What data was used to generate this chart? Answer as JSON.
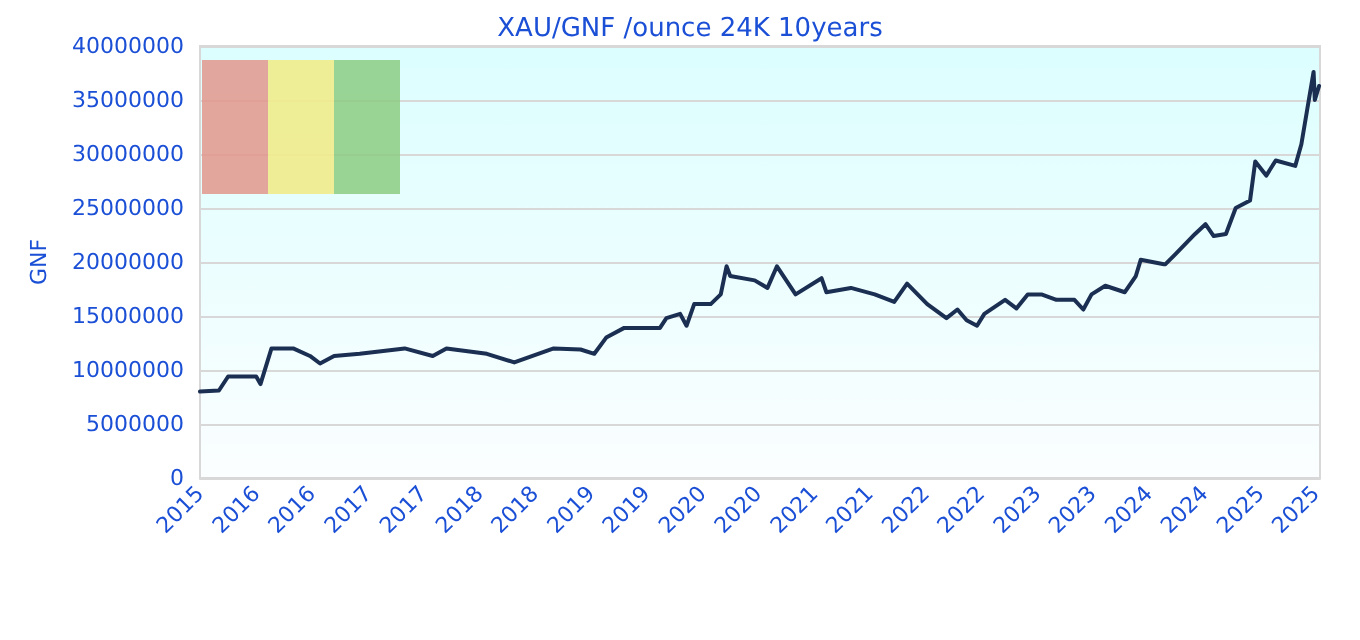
{
  "chart_data": {
    "type": "line",
    "title": "XAU/GNF /ounce 24K 10years",
    "ylabel": "GNF",
    "x": [
      "2015-07-01",
      "2015-09-01",
      "2015-10-01",
      "2016-01-01",
      "2016-01-15",
      "2016-02-20",
      "2016-05-01",
      "2016-06-25",
      "2016-07-28",
      "2016-09-12",
      "2016-12-05",
      "2017-05-01",
      "2017-08-01",
      "2017-09-15",
      "2018-01-25",
      "2018-04-25",
      "2018-09-01",
      "2018-11-28",
      "2019-01-12",
      "2019-02-20",
      "2019-04-20",
      "2019-07-01",
      "2019-08-15",
      "2019-09-05",
      "2019-10-20",
      "2019-11-10",
      "2019-12-05",
      "2020-01-28",
      "2020-03-01",
      "2020-03-20",
      "2020-04-01",
      "2020-06-20",
      "2020-08-01",
      "2020-09-01",
      "2020-11-01",
      "2021-01-25",
      "2021-02-10",
      "2021-05-01",
      "2021-07-18",
      "2021-09-20",
      "2021-11-01",
      "2022-01-06",
      "2022-03-10",
      "2022-04-15",
      "2022-05-15",
      "2022-06-18",
      "2022-07-12",
      "2022-09-18",
      "2022-10-25",
      "2022-12-01",
      "2023-01-15",
      "2023-03-05",
      "2023-05-03",
      "2023-06-01",
      "2023-06-28",
      "2023-08-12",
      "2023-10-15",
      "2023-11-20",
      "2023-12-06",
      "2024-02-20",
      "2024-02-25",
      "2024-03-28",
      "2024-06-01",
      "2024-07-05",
      "2024-08-01",
      "2024-09-10",
      "2024-10-12",
      "2024-11-28",
      "2024-12-15",
      "2025-01-20",
      "2025-02-20",
      "2025-04-25",
      "2025-05-15",
      "2025-06-03",
      "2025-06-24",
      "2025-06-28",
      "2025-07-12"
    ],
    "series": [
      {
        "color": "#1b2f52",
        "values": [
          8000000,
          8100000,
          9400000,
          9400000,
          8700000,
          12000000,
          12000000,
          11300000,
          10600000,
          11300000,
          11500000,
          12000000,
          11300000,
          12000000,
          11500000,
          10700000,
          12000000,
          11900000,
          11500000,
          13000000,
          13900000,
          13900000,
          13900000,
          14800000,
          15200000,
          14100000,
          16100000,
          16100000,
          17000000,
          19600000,
          18700000,
          18300000,
          17600000,
          19600000,
          17000000,
          18500000,
          17200000,
          17600000,
          17000000,
          16300000,
          18000000,
          16100000,
          14800000,
          15600000,
          14600000,
          14100000,
          15200000,
          16500000,
          15700000,
          17000000,
          17000000,
          16500000,
          16500000,
          15600000,
          17000000,
          17800000,
          17200000,
          18700000,
          20200000,
          19800000,
          19800000,
          20700000,
          22600000,
          23500000,
          22400000,
          22600000,
          25000000,
          25700000,
          29300000,
          28000000,
          29400000,
          28900000,
          30900000,
          34100000,
          37600000,
          35000000,
          36300000
        ]
      }
    ],
    "xlim": [
      "2015-07-01",
      "2025-07-15"
    ],
    "xticks": [
      {
        "value": "2015-07-01",
        "label": "2015"
      },
      {
        "value": "2016-01-01",
        "label": "2016"
      },
      {
        "value": "2016-07-01",
        "label": "2016"
      },
      {
        "value": "2017-01-01",
        "label": "2017"
      },
      {
        "value": "2017-07-01",
        "label": "2017"
      },
      {
        "value": "2018-01-01",
        "label": "2018"
      },
      {
        "value": "2018-07-01",
        "label": "2018"
      },
      {
        "value": "2019-01-01",
        "label": "2019"
      },
      {
        "value": "2019-07-01",
        "label": "2019"
      },
      {
        "value": "2020-01-01",
        "label": "2020"
      },
      {
        "value": "2020-07-01",
        "label": "2020"
      },
      {
        "value": "2021-01-01",
        "label": "2021"
      },
      {
        "value": "2021-07-01",
        "label": "2021"
      },
      {
        "value": "2022-01-01",
        "label": "2022"
      },
      {
        "value": "2022-07-01",
        "label": "2022"
      },
      {
        "value": "2023-01-01",
        "label": "2023"
      },
      {
        "value": "2023-07-01",
        "label": "2023"
      },
      {
        "value": "2024-01-01",
        "label": "2024"
      },
      {
        "value": "2024-07-01",
        "label": "2024"
      },
      {
        "value": "2025-01-01",
        "label": "2025"
      },
      {
        "value": "2025-07-01",
        "label": "2025"
      }
    ],
    "ylim": [
      0,
      40000000
    ],
    "yticks": [
      0,
      5000000,
      10000000,
      15000000,
      20000000,
      25000000,
      30000000,
      35000000,
      40000000
    ],
    "grid": "y",
    "marker": "none",
    "line_style": "solid"
  }
}
